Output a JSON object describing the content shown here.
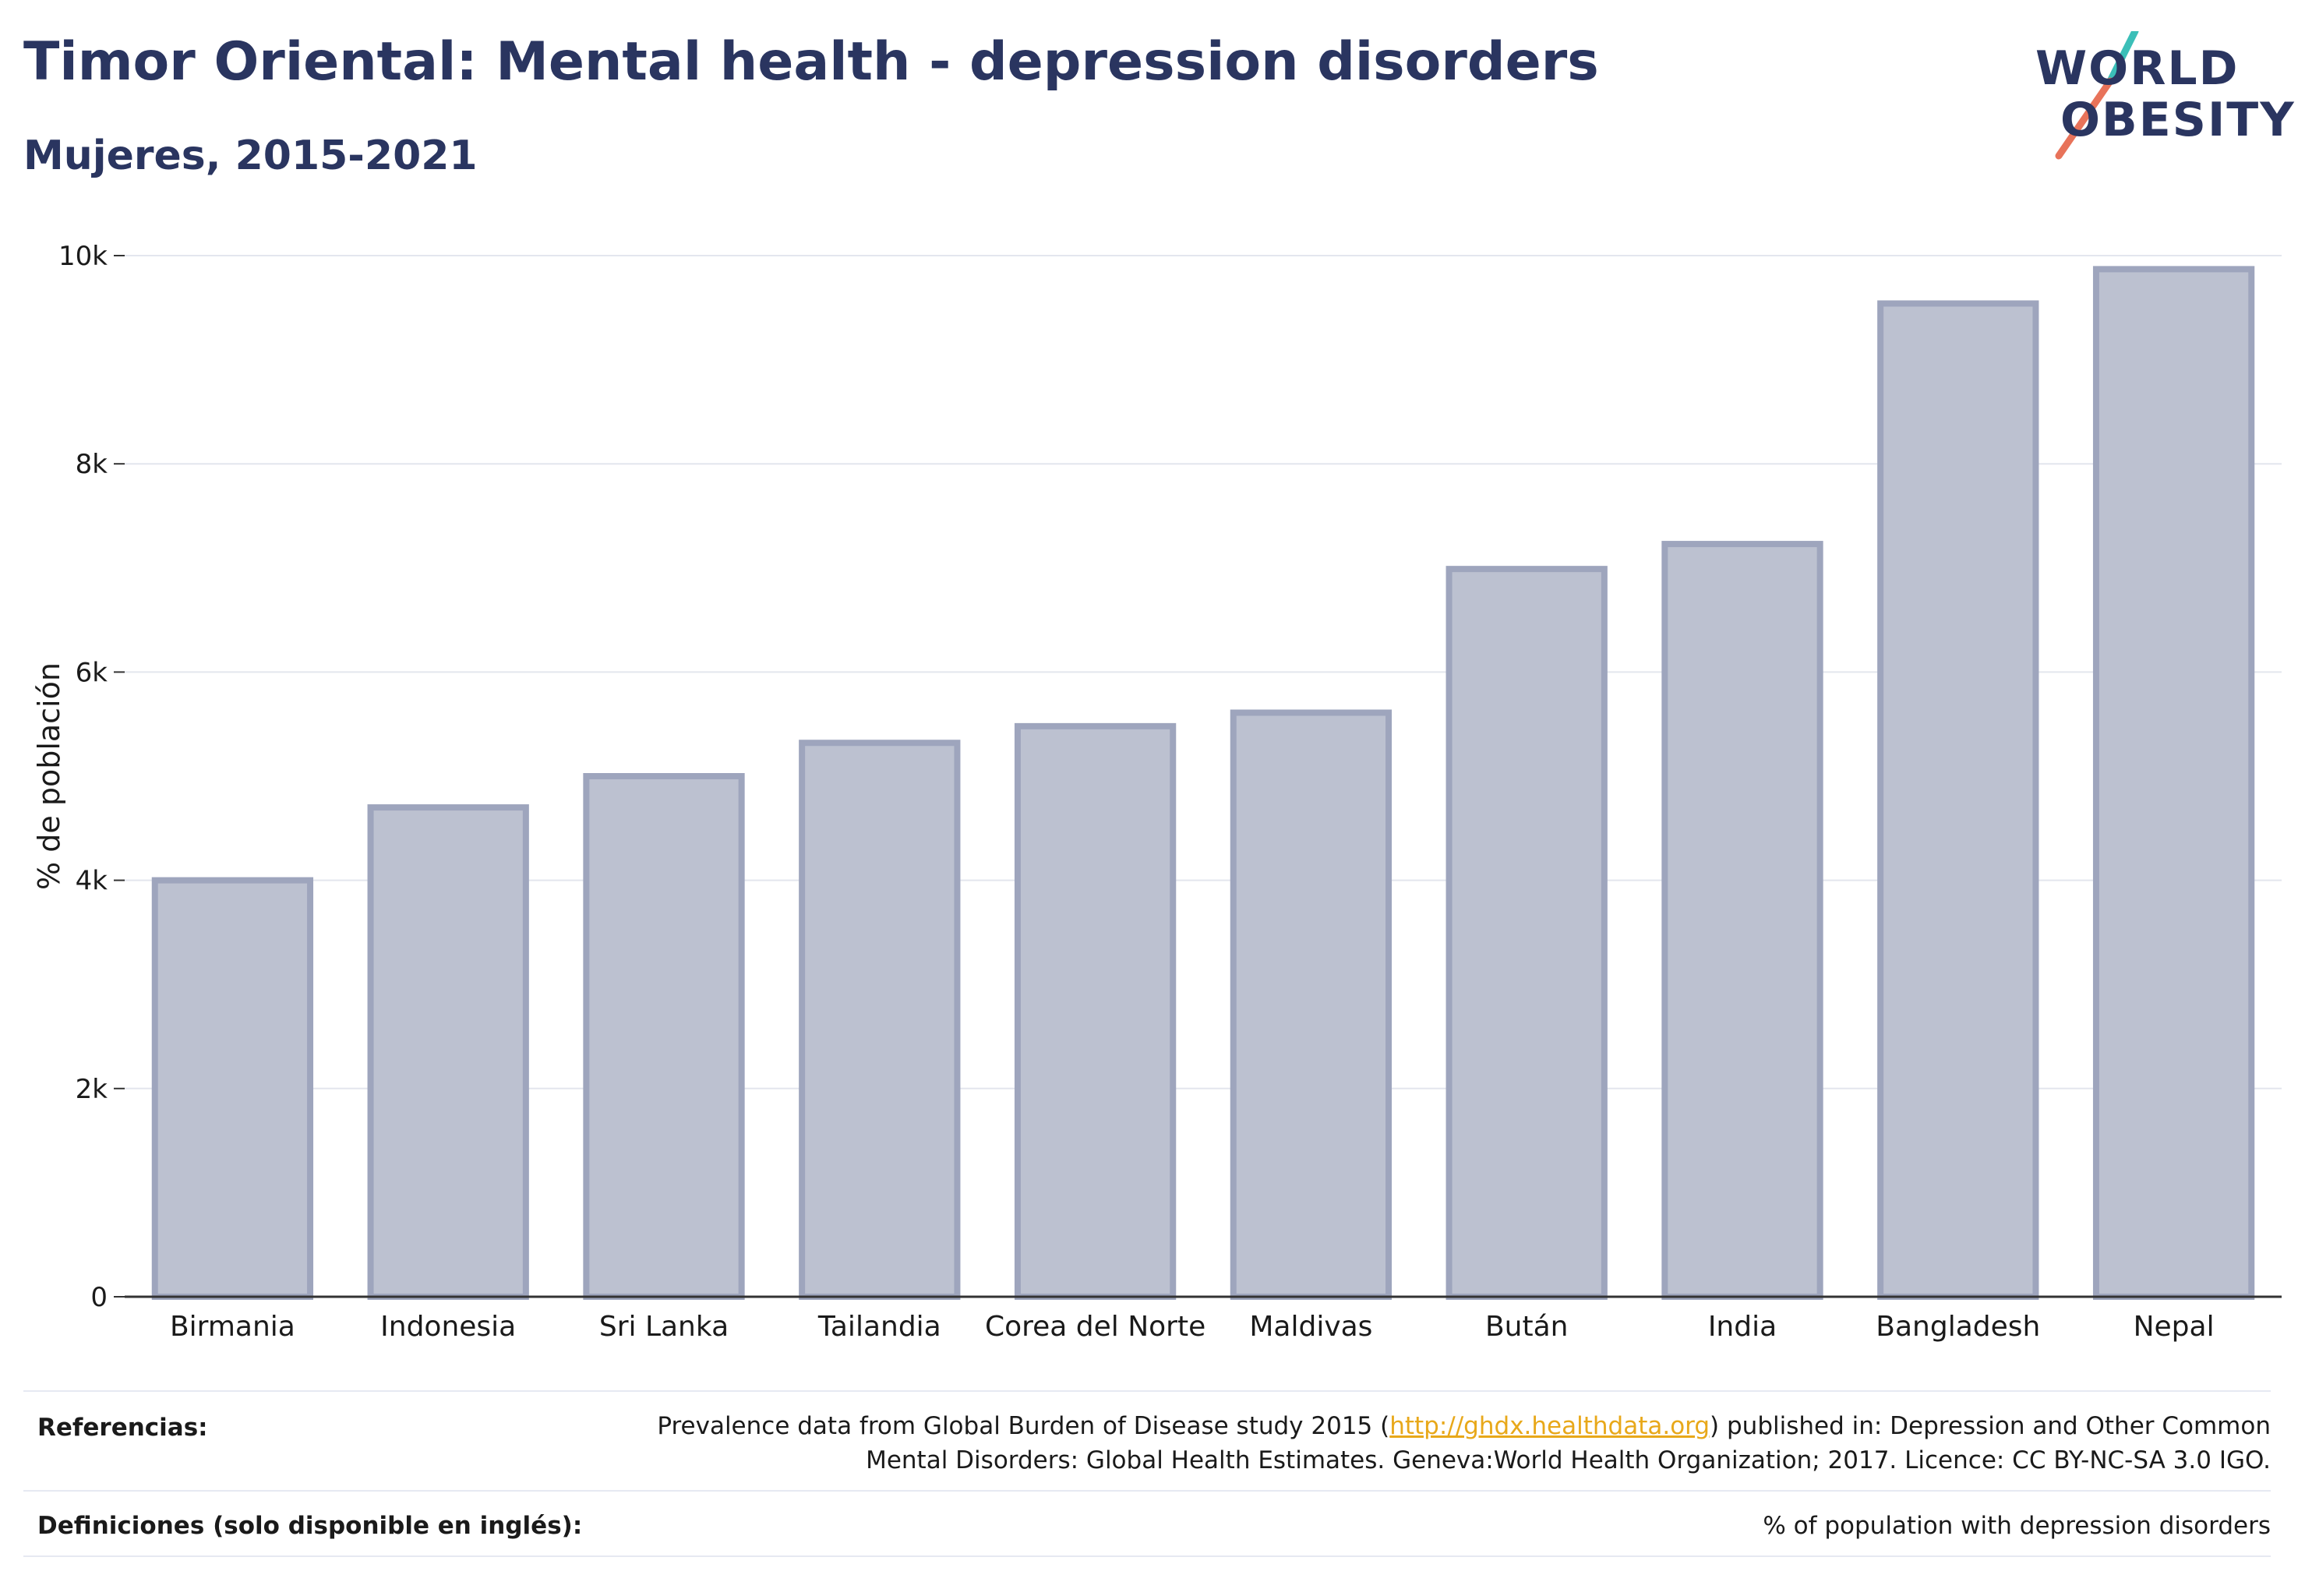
{
  "header": {
    "title": "Timor Oriental: Mental health - depression disorders",
    "subtitle": "Mujeres, 2015-2021"
  },
  "logo": {
    "line1": "WORLD",
    "line2": "OBESITY",
    "slash_colors": [
      "#3bbfb8",
      "#e8735a"
    ]
  },
  "chart_data": {
    "type": "bar",
    "categories": [
      "Birmania",
      "Indonesia",
      "Sri Lanka",
      "Tailandia",
      "Corea del Norte",
      "Maldivas",
      "Bután",
      "India",
      "Bangladesh",
      "Nepal"
    ],
    "values": [
      4000,
      4700,
      5000,
      5320,
      5480,
      5610,
      6990,
      7230,
      9540,
      9870
    ],
    "ylabel": "% de población",
    "ylim": [
      0,
      10000
    ],
    "yticks": [
      0,
      2000,
      4000,
      6000,
      8000,
      10000
    ],
    "ytick_labels": [
      "0",
      "2k",
      "4k",
      "6k",
      "8k",
      "10k"
    ],
    "grid": true,
    "bar_fill": "#bcc1d0",
    "bar_stroke": "#9ea5bd",
    "legend": "none"
  },
  "footer": {
    "references_label": "Referencias:",
    "references_text_before": "Prevalence data from Global Burden of Disease study 2015 (",
    "references_link": "http://ghdx.healthdata.org",
    "references_text_after": ") published in: Depression and Other Common",
    "references_line2": "Mental Disorders: Global Health Estimates. Geneva:World Health Organization; 2017. Licence: CC BY-NC-SA 3.0 IGO.",
    "definitions_label": "Definiciones (solo disponible en inglés):",
    "definitions_text": "% of population with depression disorders"
  }
}
